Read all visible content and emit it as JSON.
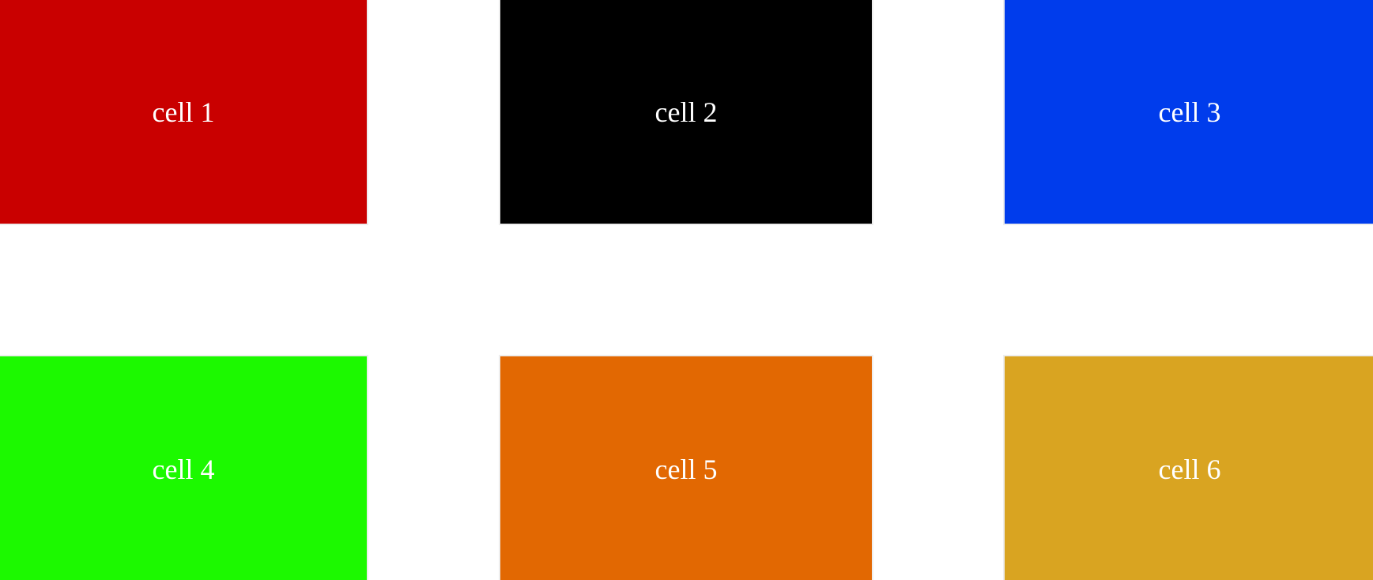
{
  "cells": [
    {
      "label": "cell 1",
      "color": "#c90000"
    },
    {
      "label": "cell 2",
      "color": "#000000"
    },
    {
      "label": "cell 3",
      "color": "#003cec"
    },
    {
      "label": "cell 4",
      "color": "#1cf900"
    },
    {
      "label": "cell 5",
      "color": "#e26802"
    },
    {
      "label": "cell 6",
      "color": "#d9a421"
    }
  ]
}
